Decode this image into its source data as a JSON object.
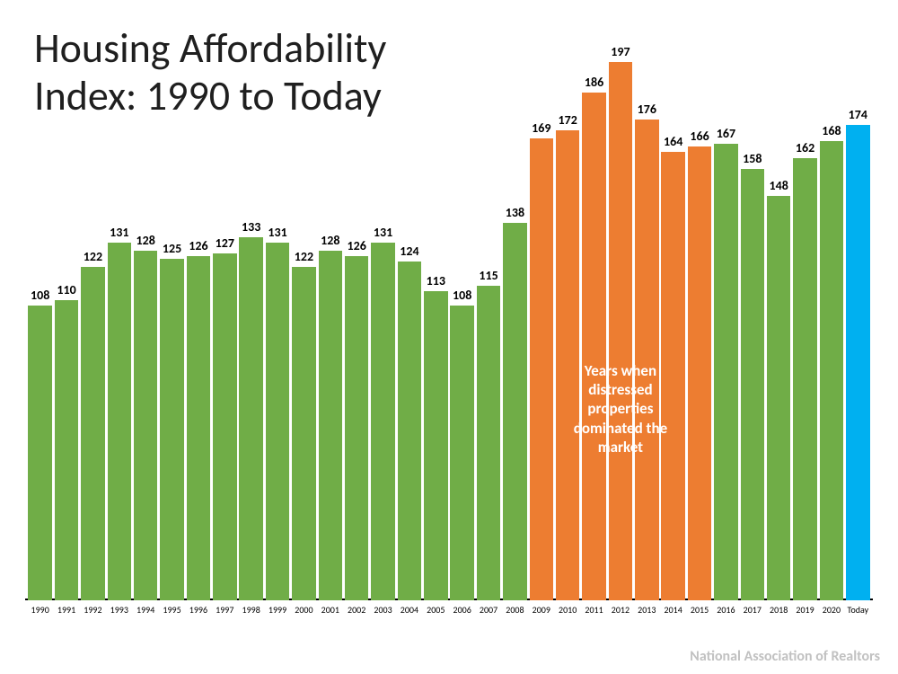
{
  "chart": {
    "type": "bar",
    "title": "Housing Affordability\nIndex: 1990 to Today",
    "title_fontsize": 46,
    "title_color": "#1f1f1f",
    "source": "National Association of Realtors",
    "source_color": "#c1c1c1",
    "background_color": "#ffffff",
    "baseline_color": "#000000",
    "value_label_fontsize": 14,
    "value_label_color": "#000000",
    "category_label_fontsize": 10,
    "category_label_color": "#000000",
    "ylim": [
      0,
      200
    ],
    "bar_gap_ratio": 0.1,
    "colors": {
      "green": "#70AD47",
      "orange": "#ED7D31",
      "blue": "#00B0F0"
    },
    "data": [
      {
        "category": "1990",
        "value": 108,
        "series": "green"
      },
      {
        "category": "1991",
        "value": 110,
        "series": "green"
      },
      {
        "category": "1992",
        "value": 122,
        "series": "green"
      },
      {
        "category": "1993",
        "value": 131,
        "series": "green"
      },
      {
        "category": "1994",
        "value": 128,
        "series": "green"
      },
      {
        "category": "1995",
        "value": 125,
        "series": "green"
      },
      {
        "category": "1996",
        "value": 126,
        "series": "green"
      },
      {
        "category": "1997",
        "value": 127,
        "series": "green"
      },
      {
        "category": "1998",
        "value": 133,
        "series": "green"
      },
      {
        "category": "1999",
        "value": 131,
        "series": "green"
      },
      {
        "category": "2000",
        "value": 122,
        "series": "green"
      },
      {
        "category": "2001",
        "value": 128,
        "series": "green"
      },
      {
        "category": "2002",
        "value": 126,
        "series": "green"
      },
      {
        "category": "2003",
        "value": 131,
        "series": "green"
      },
      {
        "category": "2004",
        "value": 124,
        "series": "green"
      },
      {
        "category": "2005",
        "value": 113,
        "series": "green"
      },
      {
        "category": "2006",
        "value": 108,
        "series": "green"
      },
      {
        "category": "2007",
        "value": 115,
        "series": "green"
      },
      {
        "category": "2008",
        "value": 138,
        "series": "green"
      },
      {
        "category": "2009",
        "value": 169,
        "series": "orange"
      },
      {
        "category": "2010",
        "value": 172,
        "series": "orange"
      },
      {
        "category": "2011",
        "value": 186,
        "series": "orange"
      },
      {
        "category": "2012",
        "value": 197,
        "series": "orange"
      },
      {
        "category": "2013",
        "value": 176,
        "series": "orange"
      },
      {
        "category": "2014",
        "value": 164,
        "series": "orange"
      },
      {
        "category": "2015",
        "value": 166,
        "series": "orange"
      },
      {
        "category": "2016",
        "value": 167,
        "series": "green"
      },
      {
        "category": "2017",
        "value": 158,
        "series": "green"
      },
      {
        "category": "2018",
        "value": 148,
        "series": "green"
      },
      {
        "category": "2019",
        "value": 162,
        "series": "green"
      },
      {
        "category": "2020",
        "value": 168,
        "series": "green"
      },
      {
        "category": "Today",
        "value": 174,
        "series": "blue"
      }
    ],
    "annotation": {
      "text": "Years when\ndistressed\nproperties\ndominated the\nmarket",
      "text_color": "#ffffff",
      "fontsize": 17,
      "fontweight": "bold",
      "over_categories_start": "2009",
      "over_categories_end": "2015",
      "y_center_value": 70
    }
  }
}
